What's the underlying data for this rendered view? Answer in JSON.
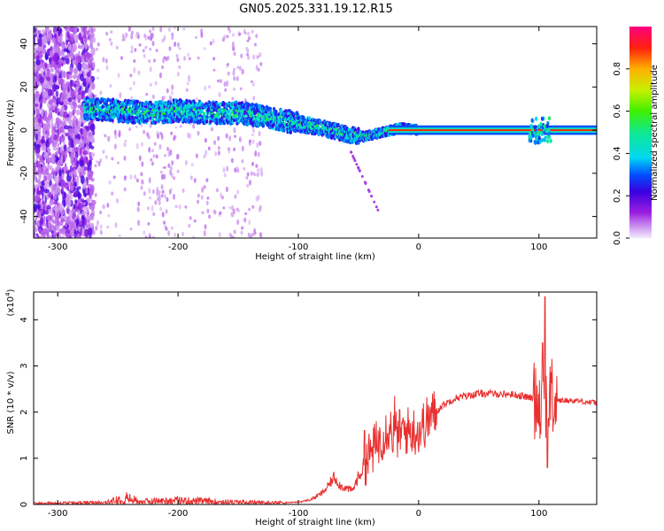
{
  "title": "GN05.2025.331.19.12.R15",
  "chart_data": [
    {
      "type": "heatmap",
      "name": "spectrogram",
      "xlabel": "Height of straight line (km)",
      "ylabel": "Frequency (Hz)",
      "xlim": [
        -320,
        148
      ],
      "ylim": [
        -50,
        48
      ],
      "xticks": [
        -300,
        -200,
        -100,
        0,
        100
      ],
      "yticks": [
        -40,
        -20,
        0,
        20,
        40
      ],
      "colorbar": {
        "label": "Normalized spectral amplitude",
        "range": [
          0,
          1
        ],
        "ticks": [
          0.0,
          0.2,
          0.4,
          0.6,
          0.8
        ],
        "tick_labels": [
          "0.0",
          "0.2",
          "0.4",
          "0.6",
          "0.8"
        ]
      },
      "ridge": {
        "x": [
          -275,
          -250,
          -225,
          -200,
          -175,
          -150,
          -125,
          -100,
          -80,
          -60,
          -45,
          -30,
          -15,
          0,
          50,
          95,
          100,
          105,
          110,
          148
        ],
        "y": [
          10,
          9,
          8,
          9,
          8,
          8,
          6,
          3,
          1,
          -2,
          -3,
          -1,
          1,
          0,
          0,
          0,
          2,
          0,
          0,
          0
        ]
      }
    },
    {
      "type": "line",
      "name": "snr",
      "xlabel": "Height of straight line (km)",
      "ylabel": "SNR (10 * v/v)",
      "y_multiplier": "(x10",
      "y_multiplier_exp": "4",
      "xlim": [
        -320,
        148
      ],
      "ylim": [
        0,
        4.6
      ],
      "xticks": [
        -300,
        -200,
        -100,
        0,
        100
      ],
      "yticks": [
        0,
        1,
        2,
        3,
        4
      ],
      "color": "#e8302f",
      "envelope": {
        "x": [
          -320,
          -260,
          -245,
          -230,
          -200,
          -150,
          -120,
          -100,
          -90,
          -80,
          -75,
          -70,
          -65,
          -55,
          -50,
          -40,
          -30,
          -25,
          -20,
          -10,
          0,
          10,
          20,
          30,
          40,
          50,
          60,
          80,
          95,
          105,
          115,
          130,
          148
        ],
        "y": [
          0.02,
          0.03,
          0.12,
          0.05,
          0.07,
          0.04,
          0.03,
          0.05,
          0.1,
          0.25,
          0.4,
          0.6,
          0.4,
          0.3,
          0.6,
          1.1,
          1.5,
          1.7,
          1.5,
          1.6,
          1.6,
          1.9,
          2.15,
          2.3,
          2.35,
          2.4,
          2.4,
          2.38,
          2.3,
          2.3,
          2.25,
          2.25,
          2.2
        ]
      },
      "spikes": [
        {
          "x": 105,
          "y": 4.5
        },
        {
          "x": 107,
          "y": 0.8
        },
        {
          "x": 103,
          "y": 3.5
        },
        {
          "x": -20,
          "y": 2.35
        },
        {
          "x": -45,
          "y": 1.6
        }
      ]
    }
  ]
}
